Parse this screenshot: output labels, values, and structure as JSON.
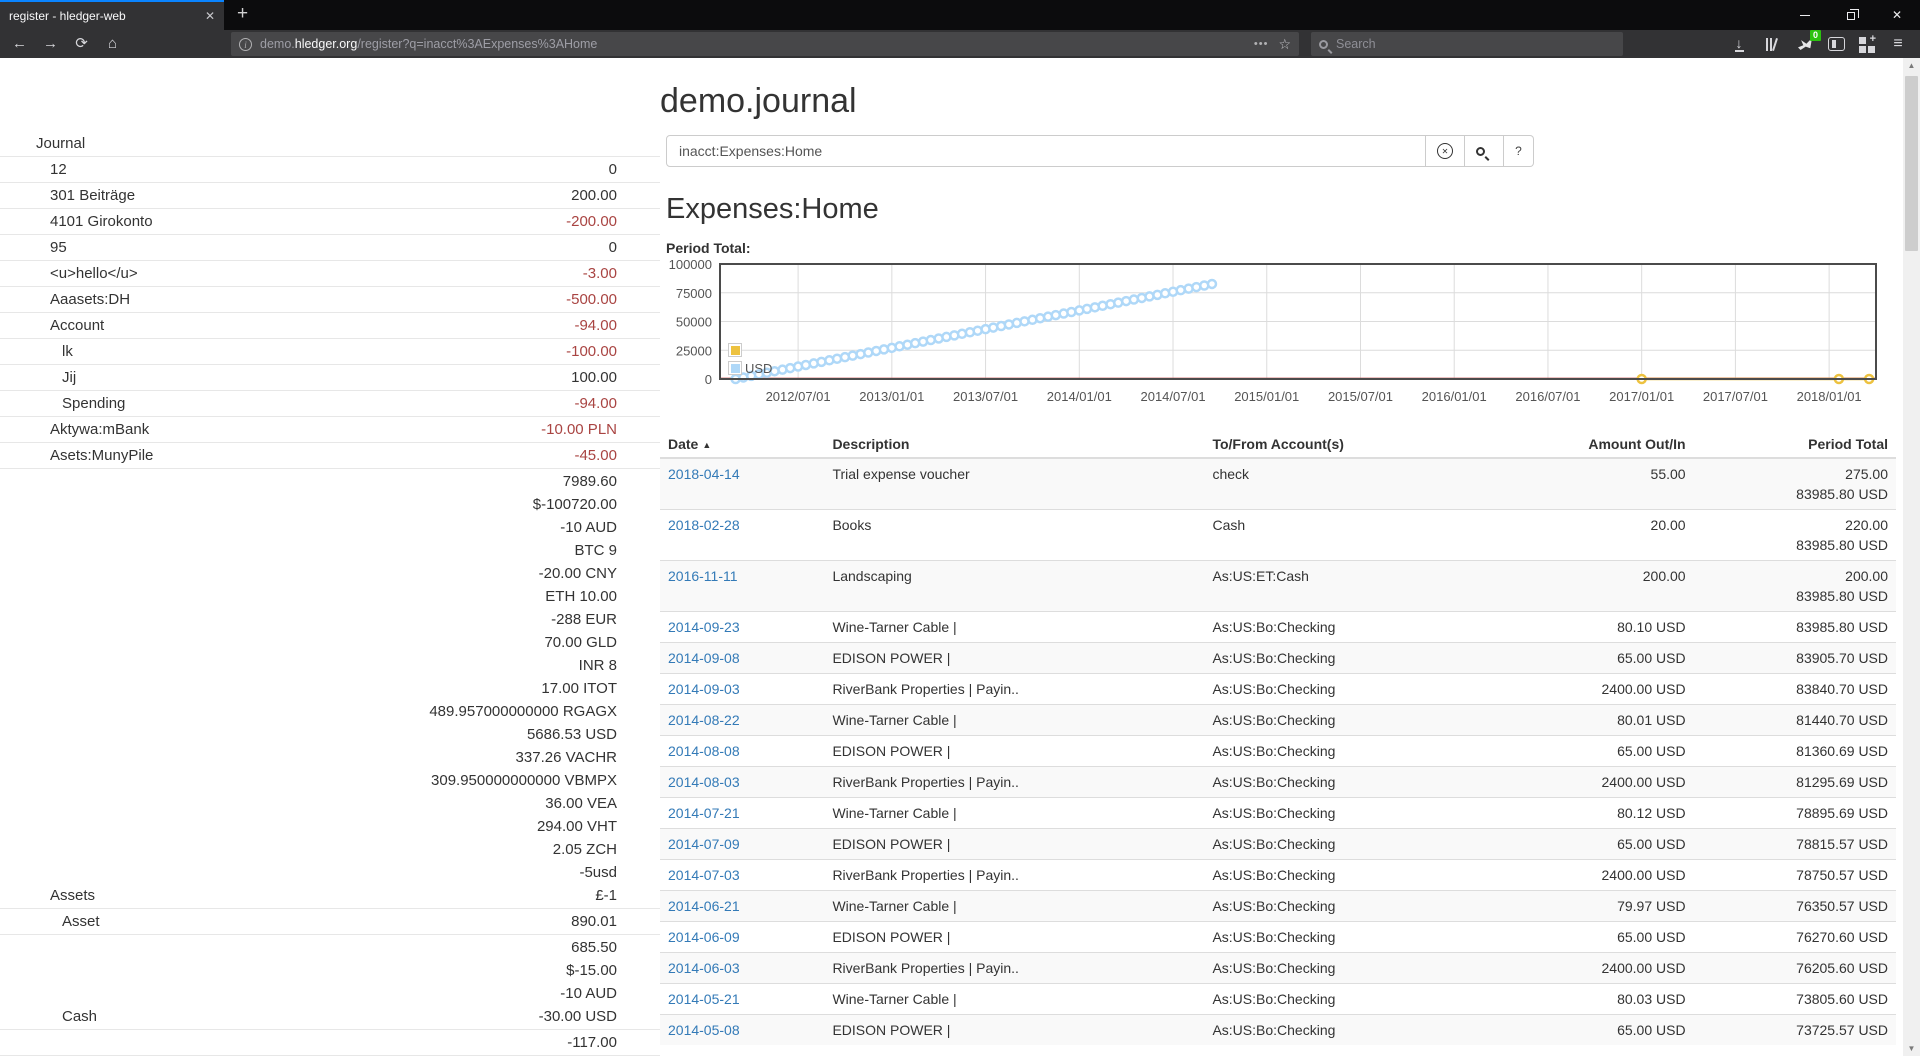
{
  "browser": {
    "tab_title": "register - hledger-web",
    "url_subdomain": "demo.",
    "url_domain": "hledger.org",
    "url_path": "/register?q=inacct%3AExpenses%3AHome",
    "search_placeholder": "Search",
    "extension_badge": "0"
  },
  "icons": {
    "close": "✕",
    "close_small": "✕",
    "plus": "+",
    "back": "←",
    "forward": "→",
    "reload": "⟳",
    "home": "⌂",
    "menu": "≡",
    "star": "☆",
    "dots": "•••",
    "down_arrow": "↓",
    "up_tri": "▲",
    "down_tri": "▼",
    "sort_asc": "▲"
  },
  "page": {
    "title": "demo.journal",
    "query_value": "inacct:Expenses:Home",
    "help_label": "?",
    "heading": "Expenses:Home",
    "chart_label": "Period Total:"
  },
  "colors": {
    "link": "#337ab7",
    "negative": "#a94442",
    "series_yellow": "#edc240",
    "series_blue": "#afd8f8",
    "zero_line": "#cb4b4b",
    "grid": "#dcdcdc",
    "chart_border": "#4b4b4b"
  },
  "sidebar": {
    "items": [
      {
        "label": "Journal",
        "level": 0,
        "amounts": []
      },
      {
        "label": "12",
        "level": 1,
        "amounts": [
          {
            "t": "0"
          }
        ]
      },
      {
        "label": "301 Beiträge",
        "level": 1,
        "amounts": [
          {
            "t": "200.00"
          }
        ]
      },
      {
        "label": "4101 Girokonto",
        "level": 1,
        "amounts": [
          {
            "t": "-200.00",
            "neg": true
          }
        ]
      },
      {
        "label": "95",
        "level": 1,
        "amounts": [
          {
            "t": "0"
          }
        ]
      },
      {
        "label": "<u>hello</u>",
        "level": 1,
        "amounts": [
          {
            "t": "-3.00",
            "neg": true
          }
        ]
      },
      {
        "label": "Aaasets:DH",
        "level": 1,
        "amounts": [
          {
            "t": "-500.00",
            "neg": true
          }
        ]
      },
      {
        "label": "Account",
        "level": 1,
        "amounts": [
          {
            "t": "-94.00",
            "neg": true
          }
        ]
      },
      {
        "label": "lk",
        "level": 2,
        "amounts": [
          {
            "t": "-100.00",
            "neg": true
          }
        ]
      },
      {
        "label": "Jij",
        "level": 2,
        "amounts": [
          {
            "t": "100.00"
          }
        ]
      },
      {
        "label": "Spending",
        "level": 2,
        "amounts": [
          {
            "t": "-94.00",
            "neg": true
          }
        ]
      },
      {
        "label": "Aktywa:mBank",
        "level": 1,
        "amounts": [
          {
            "t": "-10.00 PLN",
            "neg": true
          }
        ]
      },
      {
        "label": "Asets:MunyPile",
        "level": 1,
        "amounts": [
          {
            "t": "-45.00",
            "neg": true
          }
        ]
      },
      {
        "label": "Assets",
        "level": 1,
        "amounts": [
          {
            "t": "7989.60"
          },
          {
            "t": "$-100720.00"
          },
          {
            "t": "-10 AUD"
          },
          {
            "t": "BTC 9"
          },
          {
            "t": "-20.00 CNY"
          },
          {
            "t": "ETH 10.00"
          },
          {
            "t": "-288 EUR"
          },
          {
            "t": "70.00 GLD"
          },
          {
            "t": "INR 8"
          },
          {
            "t": "17.00 ITOT"
          },
          {
            "t": "489.957000000000 RGAGX"
          },
          {
            "t": "5686.53 USD"
          },
          {
            "t": "337.26 VACHR"
          },
          {
            "t": "309.950000000000 VBMPX"
          },
          {
            "t": "36.00 VEA"
          },
          {
            "t": "294.00 VHT"
          },
          {
            "t": "2.05 ZCH"
          },
          {
            "t": "-5usd"
          },
          {
            "t": "£-1"
          }
        ]
      },
      {
        "label": "Asset",
        "level": 2,
        "amounts": [
          {
            "t": "890.01"
          }
        ]
      },
      {
        "label": "Cash",
        "level": 2,
        "amounts": [
          {
            "t": "685.50"
          },
          {
            "t": "$-15.00"
          },
          {
            "t": "-10 AUD"
          },
          {
            "t": "-30.00 USD"
          }
        ]
      },
      {
        "label": "",
        "level": 2,
        "amounts": [
          {
            "t": "-117.00"
          }
        ]
      }
    ]
  },
  "register_table": {
    "columns": [
      "Date",
      "Description",
      "To/From Account(s)",
      "Amount Out/In",
      "Period Total"
    ],
    "rows": [
      {
        "date": "2018-04-14",
        "description": "Trial expense voucher",
        "tofrom": "check",
        "amount": "55.00",
        "period": [
          "275.00",
          "83985.80 USD"
        ]
      },
      {
        "date": "2018-02-28",
        "description": "Books",
        "tofrom": "Cash",
        "amount": "20.00",
        "period": [
          "220.00",
          "83985.80 USD"
        ]
      },
      {
        "date": "2016-11-11",
        "description": "Landscaping",
        "tofrom": "As:US:ET:Cash",
        "amount": "200.00",
        "period": [
          "200.00",
          "83985.80 USD"
        ]
      },
      {
        "date": "2014-09-23",
        "description": "Wine-Tarner Cable |",
        "tofrom": "As:US:Bo:Checking",
        "amount": "80.10 USD",
        "period": [
          "83985.80 USD"
        ]
      },
      {
        "date": "2014-09-08",
        "description": "EDISON POWER |",
        "tofrom": "As:US:Bo:Checking",
        "amount": "65.00 USD",
        "period": [
          "83905.70 USD"
        ]
      },
      {
        "date": "2014-09-03",
        "description": "RiverBank Properties | Payin..",
        "tofrom": "As:US:Bo:Checking",
        "amount": "2400.00 USD",
        "period": [
          "83840.70 USD"
        ]
      },
      {
        "date": "2014-08-22",
        "description": "Wine-Tarner Cable |",
        "tofrom": "As:US:Bo:Checking",
        "amount": "80.01 USD",
        "period": [
          "81440.70 USD"
        ]
      },
      {
        "date": "2014-08-08",
        "description": "EDISON POWER |",
        "tofrom": "As:US:Bo:Checking",
        "amount": "65.00 USD",
        "period": [
          "81360.69 USD"
        ]
      },
      {
        "date": "2014-08-03",
        "description": "RiverBank Properties | Payin..",
        "tofrom": "As:US:Bo:Checking",
        "amount": "2400.00 USD",
        "period": [
          "81295.69 USD"
        ]
      },
      {
        "date": "2014-07-21",
        "description": "Wine-Tarner Cable |",
        "tofrom": "As:US:Bo:Checking",
        "amount": "80.12 USD",
        "period": [
          "78895.69 USD"
        ]
      },
      {
        "date": "2014-07-09",
        "description": "EDISON POWER |",
        "tofrom": "As:US:Bo:Checking",
        "amount": "65.00 USD",
        "period": [
          "78815.57 USD"
        ]
      },
      {
        "date": "2014-07-03",
        "description": "RiverBank Properties | Payin..",
        "tofrom": "As:US:Bo:Checking",
        "amount": "2400.00 USD",
        "period": [
          "78750.57 USD"
        ]
      },
      {
        "date": "2014-06-21",
        "description": "Wine-Tarner Cable |",
        "tofrom": "As:US:Bo:Checking",
        "amount": "79.97 USD",
        "period": [
          "76350.57 USD"
        ]
      },
      {
        "date": "2014-06-09",
        "description": "EDISON POWER |",
        "tofrom": "As:US:Bo:Checking",
        "amount": "65.00 USD",
        "period": [
          "76270.60 USD"
        ]
      },
      {
        "date": "2014-06-03",
        "description": "RiverBank Properties | Payin..",
        "tofrom": "As:US:Bo:Checking",
        "amount": "2400.00 USD",
        "period": [
          "76205.60 USD"
        ]
      },
      {
        "date": "2014-05-21",
        "description": "Wine-Tarner Cable |",
        "tofrom": "As:US:Bo:Checking",
        "amount": "80.03 USD",
        "period": [
          "73805.60 USD"
        ]
      },
      {
        "date": "2014-05-08",
        "description": "EDISON POWER |",
        "tofrom": "As:US:Bo:Checking",
        "amount": "65.00 USD",
        "period": [
          "73725.57 USD"
        ]
      }
    ]
  },
  "chart_data": {
    "type": "line",
    "title": "Period Total:",
    "x_axis_start": "2012-02-01",
    "x_axis_end": "2018-04-01",
    "x_ticks": [
      "2012/07/01",
      "2013/01/01",
      "2013/07/01",
      "2014/01/01",
      "2014/07/01",
      "2015/01/01",
      "2015/07/01",
      "2016/01/01",
      "2016/07/01",
      "2017/01/01",
      "2017/07/01",
      "2018/01/01"
    ],
    "y_ticks": [
      0,
      25000,
      50000,
      75000,
      100000
    ],
    "ylim": [
      0,
      100000
    ],
    "grid": true,
    "legend_position": "bottom-left",
    "legend": [
      {
        "label": "",
        "color": "#edc240"
      },
      {
        "label": "USD",
        "color": "#afd8f8"
      }
    ],
    "series": [
      {
        "name": "USD",
        "color": "#afd8f8",
        "markers": true,
        "points": [
          [
            "2012-03-01",
            0
          ],
          [
            "2012-03-16",
            1355
          ],
          [
            "2012-04-01",
            2710
          ],
          [
            "2012-04-16",
            4065
          ],
          [
            "2012-05-01",
            5420
          ],
          [
            "2012-05-16",
            6775
          ],
          [
            "2012-06-01",
            8130
          ],
          [
            "2012-06-16",
            9485
          ],
          [
            "2012-07-01",
            10840
          ],
          [
            "2012-07-16",
            12195
          ],
          [
            "2012-08-01",
            13550
          ],
          [
            "2012-08-16",
            14905
          ],
          [
            "2012-09-01",
            16260
          ],
          [
            "2012-09-16",
            17615
          ],
          [
            "2012-10-01",
            18970
          ],
          [
            "2012-10-16",
            20325
          ],
          [
            "2012-11-01",
            21680
          ],
          [
            "2012-11-16",
            23035
          ],
          [
            "2012-12-01",
            24390
          ],
          [
            "2012-12-16",
            25745
          ],
          [
            "2013-01-01",
            27100
          ],
          [
            "2013-01-16",
            28455
          ],
          [
            "2013-02-01",
            29810
          ],
          [
            "2013-02-16",
            31165
          ],
          [
            "2013-03-01",
            32520
          ],
          [
            "2013-03-16",
            33875
          ],
          [
            "2013-04-01",
            35230
          ],
          [
            "2013-04-16",
            36585
          ],
          [
            "2013-05-01",
            37940
          ],
          [
            "2013-05-16",
            39295
          ],
          [
            "2013-06-01",
            40650
          ],
          [
            "2013-06-16",
            42005
          ],
          [
            "2013-07-01",
            43360
          ],
          [
            "2013-07-16",
            44715
          ],
          [
            "2013-08-01",
            46070
          ],
          [
            "2013-08-16",
            47425
          ],
          [
            "2013-09-01",
            48780
          ],
          [
            "2013-09-16",
            50135
          ],
          [
            "2013-10-01",
            51490
          ],
          [
            "2013-10-16",
            52845
          ],
          [
            "2013-11-01",
            54200
          ],
          [
            "2013-11-16",
            55555
          ],
          [
            "2013-12-01",
            56910
          ],
          [
            "2013-12-16",
            58265
          ],
          [
            "2014-01-01",
            59620
          ],
          [
            "2014-01-16",
            60975
          ],
          [
            "2014-02-01",
            62330
          ],
          [
            "2014-02-16",
            63685
          ],
          [
            "2014-03-01",
            65040
          ],
          [
            "2014-03-16",
            66395
          ],
          [
            "2014-04-01",
            67750
          ],
          [
            "2014-04-16",
            69105
          ],
          [
            "2014-05-01",
            70460
          ],
          [
            "2014-05-16",
            71815
          ],
          [
            "2014-06-01",
            73170
          ],
          [
            "2014-06-16",
            74525
          ],
          [
            "2014-07-01",
            75880
          ],
          [
            "2014-07-16",
            77235
          ],
          [
            "2014-08-01",
            78590
          ],
          [
            "2014-08-16",
            79945
          ],
          [
            "2014-09-01",
            81300
          ],
          [
            "2014-09-16",
            82655
          ]
        ]
      },
      {
        "name": "",
        "color": "#edc240",
        "markers": true,
        "points": [
          [
            "2017-01-01",
            0
          ],
          [
            "2018-01-20",
            0
          ],
          [
            "2018-03-18",
            0
          ]
        ]
      }
    ]
  }
}
